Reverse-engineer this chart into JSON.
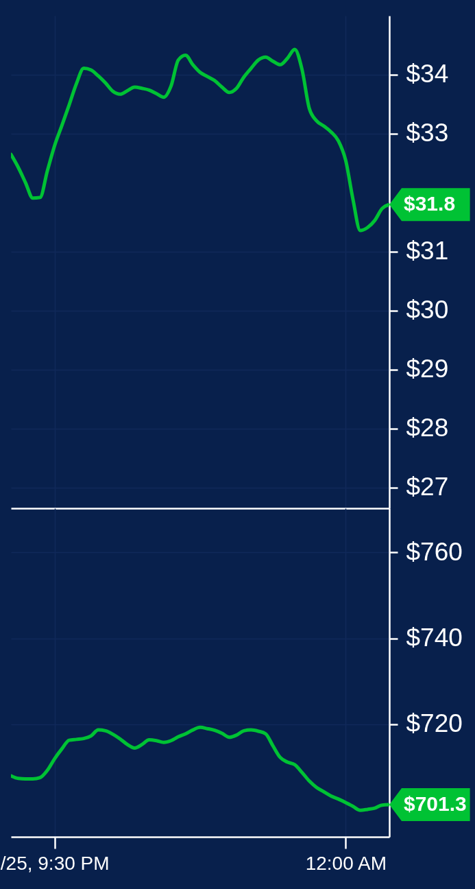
{
  "chart_data": [
    {
      "type": "line",
      "categories": [
        null,
        null,
        null,
        null,
        null,
        null,
        null,
        null,
        null,
        null,
        null,
        null,
        null,
        null,
        null,
        null,
        null,
        null,
        null,
        null,
        null,
        null,
        null,
        null,
        null,
        null,
        null,
        null,
        null,
        null,
        null,
        null,
        null,
        null,
        null,
        null,
        null,
        null,
        null,
        null,
        null,
        null,
        null,
        null,
        null,
        null,
        null,
        null,
        null,
        null,
        null,
        null,
        null
      ],
      "series": [
        {
          "color": "#00c234",
          "values": [
            32.65,
            32.43,
            32.17,
            31.91,
            31.92,
            32.37,
            32.8,
            33.14,
            33.49,
            33.85,
            34.11,
            34.08,
            33.98,
            33.86,
            33.72,
            33.67,
            33.73,
            33.79,
            33.77,
            33.74,
            33.68,
            33.62,
            33.81,
            34.25,
            34.33,
            34.17,
            34.04,
            33.97,
            33.9,
            33.79,
            33.7,
            33.77,
            33.96,
            34.11,
            34.25,
            34.3,
            34.23,
            34.17,
            34.28,
            34.43,
            34.09,
            33.43,
            33.22,
            33.13,
            33.03,
            32.88,
            32.55,
            31.89,
            31.36,
            31.41,
            31.53,
            31.73,
            31.8
          ],
          "value_labels": [
            null,
            null,
            null,
            null,
            null,
            null,
            null,
            null,
            null,
            null,
            null,
            null,
            null,
            null,
            null,
            null,
            null,
            null,
            null,
            null,
            null,
            null,
            null,
            null,
            null,
            null,
            null,
            null,
            null,
            null,
            null,
            null,
            null,
            null,
            null,
            null,
            null,
            null,
            null,
            null,
            null,
            null,
            null,
            null,
            null,
            null,
            null,
            null,
            null,
            null,
            null,
            null,
            "$31.8"
          ]
        }
      ],
      "ylim": [
        26.65,
        35
      ],
      "yticks": [
        {
          "value": 27,
          "label": "$27"
        },
        {
          "value": 28,
          "label": "$28"
        },
        {
          "value": 29,
          "label": "$29"
        },
        {
          "value": 30,
          "label": "$30"
        },
        {
          "value": 31,
          "label": "$31"
        },
        {
          "value": 33,
          "label": "$33"
        },
        {
          "value": 34,
          "label": "$34"
        }
      ],
      "grid": true,
      "tick_labels": "y"
    },
    {
      "type": "line",
      "categories": [
        null,
        null,
        null,
        null,
        null,
        null,
        "/25, 9:30 PM",
        null,
        null,
        null,
        null,
        null,
        null,
        null,
        null,
        null,
        null,
        null,
        null,
        null,
        null,
        null,
        null,
        null,
        null,
        null,
        null,
        null,
        null,
        null,
        null,
        null,
        null,
        null,
        null,
        null,
        null,
        null,
        null,
        null,
        null,
        null,
        null,
        null,
        null,
        null,
        "12:00 AM",
        null,
        null,
        null,
        null,
        null,
        null
      ],
      "series": [
        {
          "color": "#00c234",
          "values": [
            708.0,
            707.4,
            707.3,
            707.3,
            707.6,
            709.3,
            712.0,
            714.3,
            716.3,
            716.5,
            716.7,
            717.3,
            718.7,
            718.5,
            717.7,
            716.6,
            715.3,
            714.5,
            715.3,
            716.4,
            716.2,
            715.8,
            716.2,
            717.1,
            717.8,
            718.7,
            719.3,
            719.0,
            718.6,
            717.9,
            717.0,
            717.5,
            718.5,
            718.7,
            718.4,
            717.8,
            715.0,
            712.3,
            711.2,
            710.6,
            708.8,
            706.8,
            705.3,
            704.3,
            703.3,
            702.6,
            701.8,
            700.9,
            700.0,
            700.2,
            700.5,
            701.2,
            701.3
          ],
          "value_labels": [
            null,
            null,
            null,
            null,
            null,
            null,
            null,
            null,
            null,
            null,
            null,
            null,
            null,
            null,
            null,
            null,
            null,
            null,
            null,
            null,
            null,
            null,
            null,
            null,
            null,
            null,
            null,
            null,
            null,
            null,
            null,
            null,
            null,
            null,
            null,
            null,
            null,
            null,
            null,
            null,
            null,
            null,
            null,
            null,
            null,
            null,
            null,
            null,
            null,
            null,
            null,
            null,
            "$701.3"
          ]
        }
      ],
      "ylim": [
        693.8,
        770.3
      ],
      "yticks": [
        {
          "value": 720,
          "label": "$720"
        },
        {
          "value": 740,
          "label": "$740"
        },
        {
          "value": 760,
          "label": "$760"
        }
      ],
      "grid": true
    }
  ]
}
